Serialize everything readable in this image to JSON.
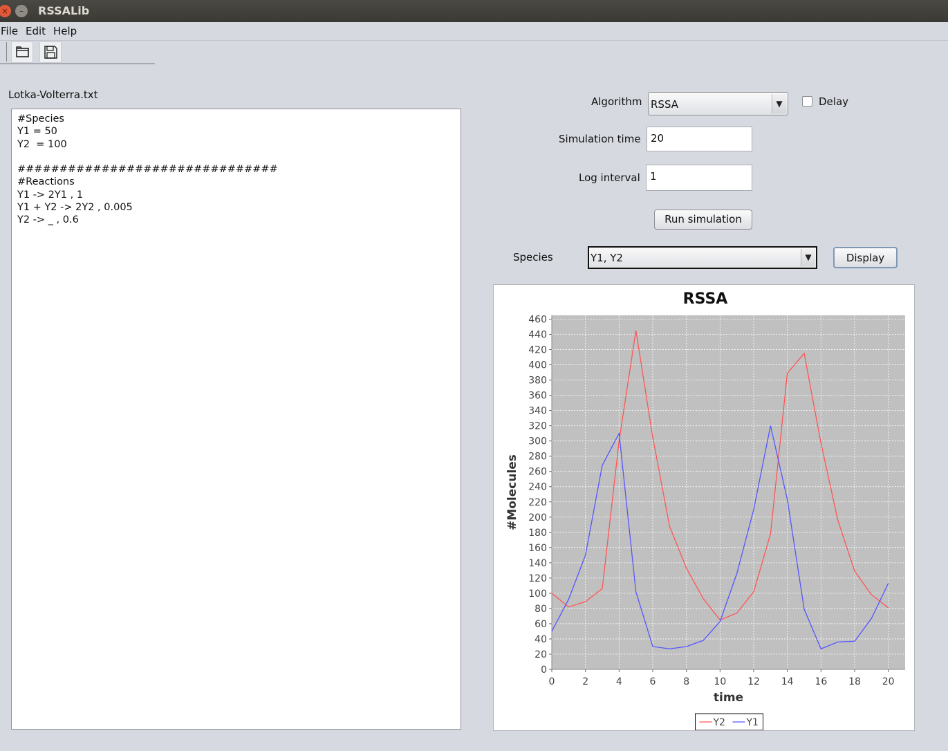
{
  "window": {
    "title": "RSSALib"
  },
  "menu": {
    "file": "File",
    "edit": "Edit",
    "help": "Help"
  },
  "toolbar": {
    "open_icon": "folder-open-icon",
    "save_icon": "floppy-save-icon"
  },
  "editor": {
    "file_name": "Lotka-Volterra.txt",
    "lines": [
      "#Species",
      "Y1 = 50",
      "Y2  = 100",
      "",
      "###############################",
      "#Reactions",
      "Y1 -> 2Y1 , 1",
      "Y1 + Y2 -> 2Y2 , 0.005",
      "Y2 -> _ , 0.6"
    ]
  },
  "controls": {
    "algorithm_label": "Algorithm",
    "algorithm_value": "RSSA",
    "delay_label": "Delay",
    "delay_checked": false,
    "sim_time_label": "Simulation time",
    "sim_time_value": "20",
    "log_interval_label": "Log interval",
    "log_interval_value": "1",
    "run_button": "Run simulation",
    "species_label": "Species",
    "species_value": "Y1, Y2",
    "display_button": "Display"
  },
  "colors": {
    "plot_bg": "#c0c0c0",
    "y1": "#5555ff",
    "y2": "#ff5555"
  },
  "chart_data": {
    "type": "line",
    "title": "RSSA",
    "xlabel": "time",
    "ylabel": "#Molecules",
    "xlim": [
      0,
      21
    ],
    "ylim": [
      0,
      465
    ],
    "x_ticks": [
      0,
      2,
      4,
      6,
      8,
      10,
      12,
      14,
      16,
      18,
      20
    ],
    "y_ticks": [
      0,
      20,
      40,
      60,
      80,
      100,
      120,
      140,
      160,
      180,
      200,
      220,
      240,
      260,
      280,
      300,
      320,
      340,
      360,
      380,
      400,
      420,
      440,
      460
    ],
    "grid": true,
    "legend_position": "bottom-center",
    "x": [
      0,
      1,
      2,
      3,
      4,
      5,
      6,
      7,
      8,
      9,
      10,
      11,
      12,
      13,
      14,
      15,
      16,
      17,
      18,
      19,
      20
    ],
    "series": [
      {
        "name": "Y2",
        "color": "#ff5555",
        "values": [
          100,
          82,
          89,
          106,
          300,
          445,
          305,
          188,
          133,
          93,
          65,
          74,
          102,
          178,
          389,
          415,
          297,
          196,
          129,
          98,
          81
        ]
      },
      {
        "name": "Y1",
        "color": "#5555ff",
        "values": [
          50,
          92,
          150,
          268,
          310,
          102,
          30,
          27,
          30,
          38,
          63,
          126,
          210,
          320,
          223,
          79,
          27,
          36,
          37,
          67,
          113
        ]
      }
    ]
  }
}
